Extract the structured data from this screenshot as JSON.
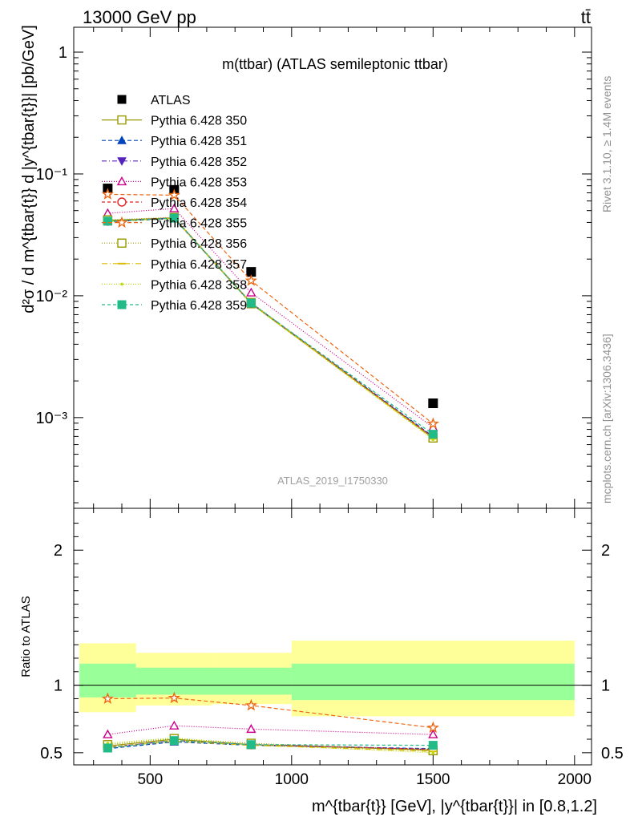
{
  "header": {
    "left": "13000 GeV pp",
    "right": "tt̄"
  },
  "side_labels": {
    "rivet": "Rivet 3.1.10, ≥ 1.4M events",
    "mcplots": "mcplots.cern.ch [arXiv:1306.3436]"
  },
  "colors": {
    "band_inner": "#99ff99",
    "band_outer": "#ffff99",
    "data": "#000000"
  },
  "chart_data": [
    {
      "type": "scatter",
      "title": "m(ttbar) (ATLAS semileptonic ttbar)",
      "watermark": "ATLAS_2019_I1750330",
      "ylabel": "d²σ / d m^{tbar{t}} d |y^{tbar{t}}| [pb/GeV]",
      "yscale": "log",
      "ylim": [
        0.00018,
        1.6
      ],
      "xlim": [
        230,
        2060
      ],
      "y_tick_labels": [
        "1",
        "10⁻¹",
        "10⁻²",
        "10⁻³"
      ],
      "x": [
        350,
        585,
        857,
        1500
      ],
      "legend_position": "top-left",
      "series": [
        {
          "name": "ATLAS",
          "color": "#000000",
          "marker": "square-filled",
          "dash": "",
          "values": [
            0.076,
            0.074,
            0.0157,
            0.00131
          ]
        },
        {
          "name": "Pythia 6.428 350",
          "color": "#999900",
          "marker": "square-open",
          "dash": "",
          "values": [
            0.0415,
            0.0435,
            0.0086,
            0.00068
          ]
        },
        {
          "name": "Pythia 6.428 351",
          "color": "#0044bb",
          "marker": "triangle-up-filled",
          "dash": "5,3",
          "values": [
            0.0405,
            0.043,
            0.0087,
            0.0007
          ]
        },
        {
          "name": "Pythia 6.428 352",
          "color": "#5522bb",
          "marker": "triangle-down-filled",
          "dash": "6,3,1,3",
          "values": [
            0.041,
            0.0435,
            0.0087,
            0.00069
          ]
        },
        {
          "name": "Pythia 6.428 353",
          "color": "#cc0088",
          "marker": "triangle-up-open",
          "dash": "1,2",
          "values": [
            0.0475,
            0.052,
            0.0106,
            0.00083
          ]
        },
        {
          "name": "Pythia 6.428 354",
          "color": "#dd2222",
          "marker": "circle-open",
          "dash": "4,3",
          "values": [
            0.041,
            0.0437,
            0.0087,
            0.00069
          ]
        },
        {
          "name": "Pythia 6.428 355",
          "color": "#ee6611",
          "marker": "star-open",
          "dash": "5,3",
          "values": [
            0.068,
            0.067,
            0.0133,
            0.00089
          ]
        },
        {
          "name": "Pythia 6.428 356",
          "color": "#999900",
          "marker": "square-open",
          "dash": "1,2",
          "values": [
            0.042,
            0.044,
            0.0088,
            0.00068
          ]
        },
        {
          "name": "Pythia 6.428 357",
          "color": "#ddbb00",
          "marker": "dash-mark",
          "dash": "7,3,1,3",
          "values": [
            0.041,
            0.0432,
            0.0087,
            0.00067
          ]
        },
        {
          "name": "Pythia 6.428 358",
          "color": "#bbdd00",
          "marker": "dot",
          "dash": "1,2",
          "values": [
            0.0405,
            0.043,
            0.0086,
            0.00066
          ]
        },
        {
          "name": "Pythia 6.428 359",
          "color": "#22bb88",
          "marker": "square-filled",
          "dash": "4,3",
          "values": [
            0.041,
            0.0434,
            0.0087,
            0.00073
          ]
        }
      ]
    },
    {
      "type": "line",
      "ylabel": "Ratio to ATLAS",
      "xlabel": "m^{tbar{t}} [GeV], |y^{tbar{t}}| in [0.8,1.2]",
      "ylim": [
        0.41,
        2.31
      ],
      "xlim": [
        230,
        2060
      ],
      "x_ticks": [
        500,
        1000,
        1500,
        2000
      ],
      "y_ticks": [
        0.5,
        1,
        2
      ],
      "x": [
        350,
        585,
        857,
        1500
      ],
      "bands": [
        {
          "x0": 250,
          "x1": 450,
          "inner": [
            0.91,
            1.16
          ],
          "outer": [
            0.8,
            1.31
          ]
        },
        {
          "x0": 450,
          "x1": 720,
          "inner": [
            0.93,
            1.13
          ],
          "outer": [
            0.85,
            1.24
          ]
        },
        {
          "x0": 720,
          "x1": 1000,
          "inner": [
            0.93,
            1.13
          ],
          "outer": [
            0.86,
            1.24
          ]
        },
        {
          "x0": 1000,
          "x1": 2000,
          "inner": [
            0.89,
            1.16
          ],
          "outer": [
            0.77,
            1.33
          ]
        }
      ],
      "series": [
        {
          "name": "Pythia 6.428 350",
          "values": [
            0.55,
            0.6,
            0.56,
            0.52
          ]
        },
        {
          "name": "Pythia 6.428 351",
          "values": [
            0.53,
            0.58,
            0.555,
            0.53
          ]
        },
        {
          "name": "Pythia 6.428 352",
          "values": [
            0.54,
            0.59,
            0.56,
            0.525
          ]
        },
        {
          "name": "Pythia 6.428 353",
          "values": [
            0.635,
            0.7,
            0.675,
            0.635
          ]
        },
        {
          "name": "Pythia 6.428 354",
          "values": [
            0.54,
            0.59,
            0.56,
            0.525
          ]
        },
        {
          "name": "Pythia 6.428 355",
          "values": [
            0.9,
            0.905,
            0.85,
            0.685
          ]
        },
        {
          "name": "Pythia 6.428 356",
          "values": [
            0.56,
            0.605,
            0.57,
            0.515
          ]
        },
        {
          "name": "Pythia 6.428 357",
          "values": [
            0.54,
            0.585,
            0.555,
            0.51
          ]
        },
        {
          "name": "Pythia 6.428 358",
          "values": [
            0.57,
            0.61,
            0.56,
            0.5
          ]
        },
        {
          "name": "Pythia 6.428 359",
          "values": [
            0.535,
            0.59,
            0.56,
            0.555
          ]
        }
      ]
    }
  ]
}
